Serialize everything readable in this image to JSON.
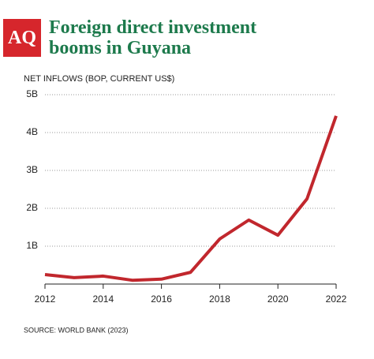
{
  "logo": "AQ",
  "chart_data": {
    "type": "line",
    "title": "Foreign direct investment booms in Guyana",
    "subtitle": "NET INFLOWS (BOP, CURRENT US$)",
    "source": "SOURCE: WORLD BANK (2023)",
    "x": [
      2012,
      2013,
      2014,
      2015,
      2016,
      2017,
      2018,
      2019,
      2020,
      2021,
      2022
    ],
    "series": [
      {
        "name": "Net inflows",
        "color": "#c1272d",
        "values": [
          0.25,
          0.17,
          0.21,
          0.1,
          0.13,
          0.31,
          1.19,
          1.69,
          1.29,
          2.25,
          4.44
        ]
      }
    ],
    "xlim": [
      2012,
      2022
    ],
    "xticks": [
      2012,
      2014,
      2016,
      2018,
      2020,
      2022
    ],
    "ylim": [
      0,
      5
    ],
    "yticks": [
      {
        "value": 1,
        "label": "1B"
      },
      {
        "value": 2,
        "label": "2B"
      },
      {
        "value": 3,
        "label": "3B"
      },
      {
        "value": 4,
        "label": "4B"
      },
      {
        "value": 5,
        "label": "5B"
      }
    ],
    "grid": true
  }
}
